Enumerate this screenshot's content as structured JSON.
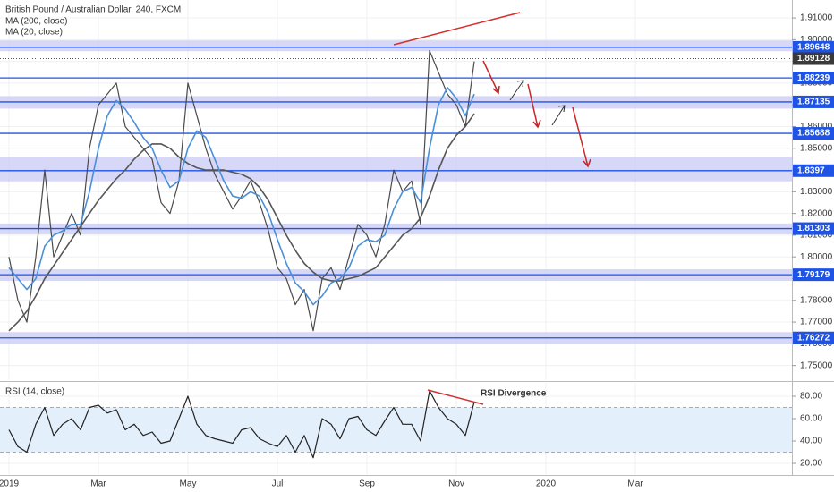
{
  "chart_data": [
    {
      "type": "line",
      "title": "British Pound / Australian Dollar, 240, FXCM",
      "x": [
        0,
        0.2,
        0.4,
        0.6,
        0.8,
        1,
        1.2,
        1.4,
        1.6,
        1.8,
        2,
        2.2,
        2.4,
        2.6,
        2.8,
        3,
        3.2,
        3.4,
        3.6,
        3.8,
        4,
        4.2,
        4.4,
        4.6,
        4.8,
        5,
        5.2,
        5.4,
        5.6,
        5.8,
        6,
        6.2,
        6.4,
        6.6,
        6.8,
        7,
        7.2,
        7.4,
        7.6,
        7.8,
        8,
        8.2,
        8.4,
        8.6,
        8.8,
        9,
        9.2,
        9.4,
        9.6,
        9.8,
        10,
        10.2,
        10.4
      ],
      "series": [
        {
          "color": "#4a4a4a",
          "values": [
            1.8,
            1.78,
            1.77,
            1.8,
            1.84,
            1.8,
            1.81,
            1.82,
            1.81,
            1.85,
            1.87,
            1.875,
            1.88,
            1.86,
            1.855,
            1.85,
            1.845,
            1.825,
            1.82,
            1.835,
            1.88,
            1.865,
            1.85,
            1.838,
            1.83,
            1.822,
            1.828,
            1.835,
            1.825,
            1.812,
            1.795,
            1.79,
            1.778,
            1.785,
            1.766,
            1.79,
            1.795,
            1.785,
            1.8,
            1.815,
            1.81,
            1.8,
            1.815,
            1.84,
            1.83,
            1.835,
            1.815,
            1.895,
            1.885,
            1.875,
            1.87,
            1.86,
            1.89
          ]
        },
        {
          "name": "MA (200, close)",
          "color": "#555555",
          "values": [
            1.766,
            1.77,
            1.775,
            1.782,
            1.79,
            1.796,
            1.802,
            1.808,
            1.814,
            1.82,
            1.826,
            1.831,
            1.836,
            1.84,
            1.845,
            1.849,
            1.852,
            1.852,
            1.85,
            1.846,
            1.843,
            1.841,
            1.84,
            1.84,
            1.84,
            1.839,
            1.838,
            1.836,
            1.832,
            1.826,
            1.818,
            1.81,
            1.803,
            1.797,
            1.793,
            1.79,
            1.789,
            1.789,
            1.79,
            1.791,
            1.793,
            1.795,
            1.8,
            1.805,
            1.81,
            1.813,
            1.818,
            1.828,
            1.84,
            1.85,
            1.856,
            1.86,
            1.866
          ]
        },
        {
          "name": "MA (20, close)",
          "color": "#4a90d9",
          "values": [
            1.795,
            1.79,
            1.785,
            1.79,
            1.805,
            1.81,
            1.812,
            1.815,
            1.815,
            1.83,
            1.85,
            1.865,
            1.872,
            1.868,
            1.862,
            1.855,
            1.85,
            1.84,
            1.832,
            1.835,
            1.85,
            1.858,
            1.855,
            1.845,
            1.835,
            1.828,
            1.827,
            1.83,
            1.828,
            1.82,
            1.808,
            1.797,
            1.788,
            1.784,
            1.778,
            1.782,
            1.788,
            1.79,
            1.795,
            1.805,
            1.808,
            1.807,
            1.81,
            1.822,
            1.83,
            1.832,
            1.825,
            1.85,
            1.87,
            1.878,
            1.873,
            1.865,
            1.875
          ]
        }
      ],
      "xlim": [
        -0.2,
        17.5
      ],
      "xticks": [
        {
          "value": 0,
          "label": "2019"
        },
        {
          "value": 2,
          "label": "Mar"
        },
        {
          "value": 4,
          "label": "May"
        },
        {
          "value": 6,
          "label": "Jul"
        },
        {
          "value": 8,
          "label": "Sep"
        },
        {
          "value": 10,
          "label": "Nov"
        },
        {
          "value": 12,
          "label": "2020"
        },
        {
          "value": 14,
          "label": "Mar"
        }
      ],
      "ylim": [
        1.74326,
        1.91826
      ],
      "yticks": [
        {
          "value": 1.91,
          "label": "1.91000"
        },
        {
          "value": 1.9,
          "label": "1.90000"
        },
        {
          "value": 1.89,
          "label": "1.89000"
        },
        {
          "value": 1.88,
          "label": "1.88000"
        },
        {
          "value": 1.87,
          "label": "1.87000"
        },
        {
          "value": 1.86,
          "label": "1.86000"
        },
        {
          "value": 1.85,
          "label": "1.85000"
        },
        {
          "value": 1.84,
          "label": "1.84000"
        },
        {
          "value": 1.83,
          "label": "1.83000"
        },
        {
          "value": 1.82,
          "label": "1.82000"
        },
        {
          "value": 1.81,
          "label": "1.81000"
        },
        {
          "value": 1.8,
          "label": "1.80000"
        },
        {
          "value": 1.79,
          "label": "1.79000"
        },
        {
          "value": 1.78,
          "label": "1.78000"
        },
        {
          "value": 1.77,
          "label": "1.77000"
        },
        {
          "value": 1.76,
          "label": "1.76000"
        },
        {
          "value": 1.75,
          "label": "1.75000"
        }
      ],
      "levels": [
        1.89648,
        1.88239,
        1.87135,
        1.85688,
        1.8397,
        1.81303,
        1.79179,
        1.76272
      ],
      "level_color": "#1e53e5",
      "current_price": 1.89128,
      "zones": [
        [
          1.89471,
          1.89967
        ],
        [
          1.86826,
          1.87405
        ],
        [
          1.83479,
          1.84595
        ],
        [
          1.81041,
          1.81537
        ],
        [
          1.78893,
          1.7943
        ],
        [
          1.76,
          1.76537
        ]
      ],
      "zone_color": "#c9c9f5",
      "grid": true
    },
    {
      "type": "line",
      "title": "RSI (14, close)",
      "values": [
        50,
        35,
        30,
        55,
        70,
        45,
        55,
        60,
        50,
        70,
        72,
        65,
        68,
        50,
        55,
        45,
        48,
        38,
        40,
        60,
        80,
        55,
        45,
        42,
        40,
        38,
        50,
        52,
        42,
        38,
        35,
        45,
        30,
        45,
        25,
        60,
        55,
        42,
        60,
        62,
        50,
        45,
        58,
        70,
        55,
        55,
        40,
        85,
        70,
        60,
        55,
        45,
        75
      ],
      "color": "#222222",
      "ylim": [
        10.4,
        92
      ],
      "yticks": [
        {
          "value": 20,
          "label": "20.00"
        },
        {
          "value": 40,
          "label": "40.00"
        },
        {
          "value": 60,
          "label": "60.00"
        },
        {
          "value": 80,
          "label": "80.00"
        }
      ],
      "bands": [
        30,
        70
      ],
      "annotation": "RSI Divergence"
    }
  ]
}
